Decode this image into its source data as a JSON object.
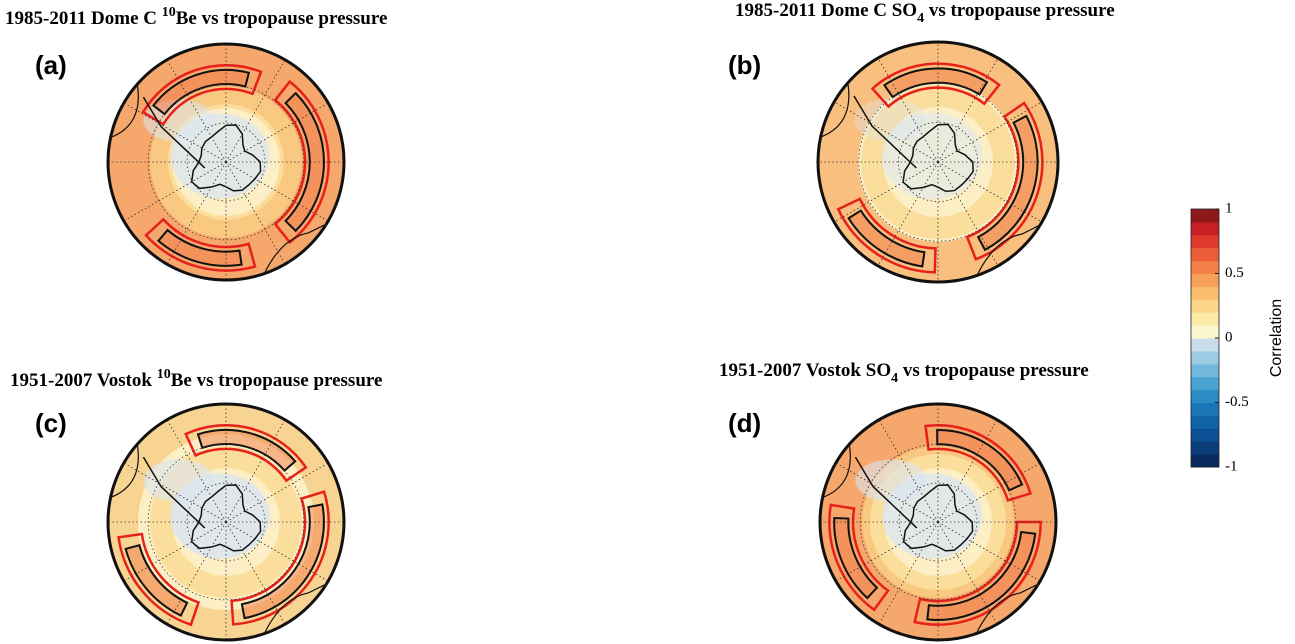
{
  "panels": [
    {
      "label": "(a)",
      "title": {
        "pre": "1985-2011 Dome C ",
        "sup": "10",
        "post": "Be vs tropopause pressure"
      }
    },
    {
      "label": "(b)",
      "title": {
        "pre": "1985-2011 Dome C SO",
        "sub": "4",
        "post": " vs tropopause pressure"
      }
    },
    {
      "label": "(c)",
      "title": {
        "pre": "1951-2007 Vostok ",
        "sup": "10",
        "post": "Be vs tropopause pressure"
      }
    },
    {
      "label": "(d)",
      "title": {
        "pre": "1951-2007 Vostok SO",
        "sub": "4",
        "post": " vs tropopause pressure"
      }
    }
  ],
  "colorbar": {
    "label": "Correlation",
    "ylim": [
      -1,
      1
    ],
    "yticks": [
      -1,
      -0.5,
      0,
      0.5,
      1
    ],
    "colors": [
      "#062b5c",
      "#0b3c7a",
      "#0d4f94",
      "#1163a8",
      "#1b76b8",
      "#2b8cc4",
      "#4aa3d1",
      "#72b8dc",
      "#9dcbe4",
      "#c8dcec",
      "#fdf7d0",
      "#fbe9a8",
      "#fbd58a",
      "#f9bd6e",
      "#f6a05a",
      "#f28048",
      "#ec5e3a",
      "#e03a2e",
      "#c71f25",
      "#8c1a1a"
    ]
  }
}
